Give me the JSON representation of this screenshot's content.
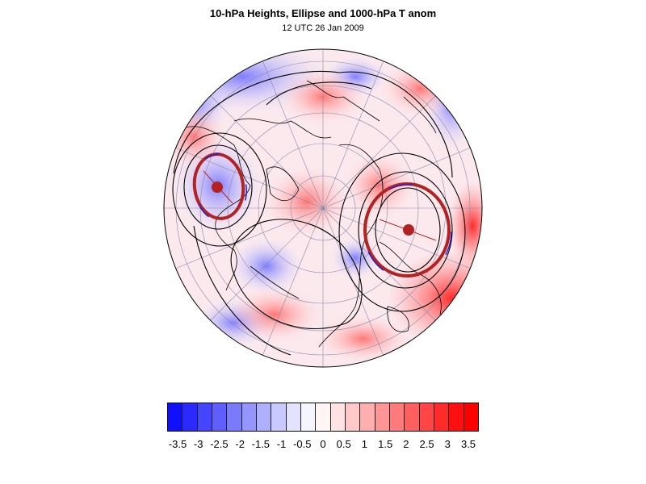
{
  "header": {
    "title": "10-hPa Heights, Ellipse and 1000-hPa T anom",
    "subtitle": "12 UTC 26 Jan 2009"
  },
  "colorbar": {
    "labels": [
      "-3.5",
      "-3",
      "-2.5",
      "-2",
      "-1.5",
      "-1",
      "-0.5",
      "0",
      "0.5",
      "1",
      "1.5",
      "2",
      "2.5",
      "3",
      "3.5"
    ],
    "colors": [
      "#1010ff",
      "#2a2aff",
      "#4545ff",
      "#5f5fff",
      "#7a7aff",
      "#9595ff",
      "#afafff",
      "#c9c9ff",
      "#e3e3ff",
      "#f5f5ff",
      "#fff5f5",
      "#ffe3e3",
      "#ffc9c9",
      "#ffafaf",
      "#ff9595",
      "#ff7a7a",
      "#ff5f5f",
      "#ff4545",
      "#ff2a2a",
      "#ff1010",
      "#ff0000"
    ],
    "min": -3.5,
    "max": 3.5
  },
  "map": {
    "projection": "orthographic-north-polar",
    "colors": {
      "warm": "#ff3a3a",
      "cold": "#3a3aff",
      "ellipse": "#b22222",
      "contour": "#000000",
      "grid": "#8888aa"
    }
  }
}
